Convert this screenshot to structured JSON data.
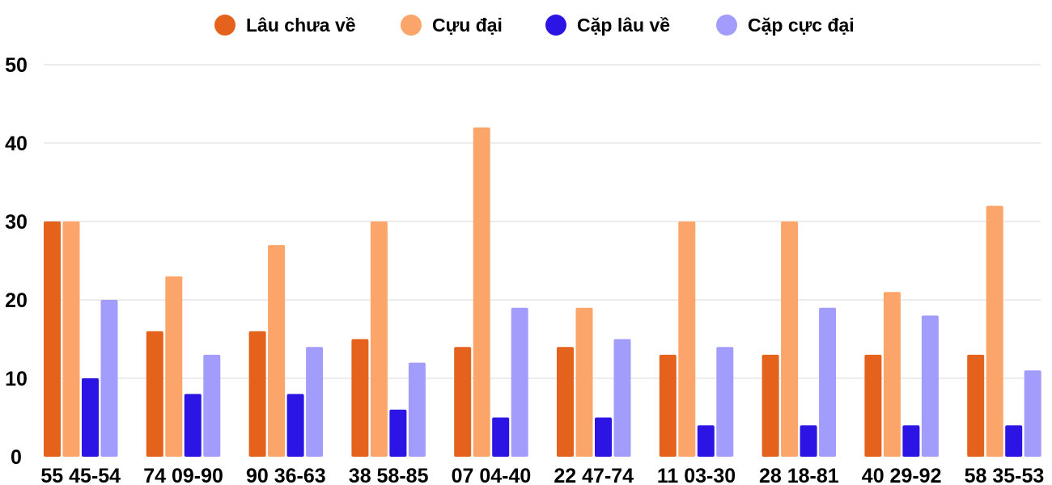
{
  "chart_data": {
    "type": "bar",
    "categories": [
      "55 45-54",
      "74 09-90",
      "90 36-63",
      "38 58-85",
      "07 04-40",
      "22 47-74",
      "11 03-30",
      "28 18-81",
      "40 29-92",
      "58 35-53"
    ],
    "series": [
      {
        "name": "Lâu chưa về",
        "color": "#e4621b",
        "values": [
          30,
          16,
          16,
          15,
          14,
          14,
          13,
          13,
          13,
          13
        ]
      },
      {
        "name": "Cựu đại",
        "color": "#fca56a",
        "values": [
          30,
          23,
          27,
          30,
          42,
          19,
          30,
          30,
          21,
          32
        ]
      },
      {
        "name": "Cặp lâu về",
        "color": "#2c14e4",
        "values": [
          10,
          8,
          8,
          6,
          5,
          5,
          4,
          4,
          4,
          4
        ]
      },
      {
        "name": "Cặp cực đại",
        "color": "#a29cfc",
        "values": [
          20,
          13,
          14,
          12,
          19,
          15,
          14,
          19,
          18,
          11
        ]
      }
    ],
    "ylim": [
      0,
      50
    ],
    "yticks": [
      0,
      10,
      20,
      30,
      40,
      50
    ],
    "grid": true,
    "legend_position": "top"
  }
}
